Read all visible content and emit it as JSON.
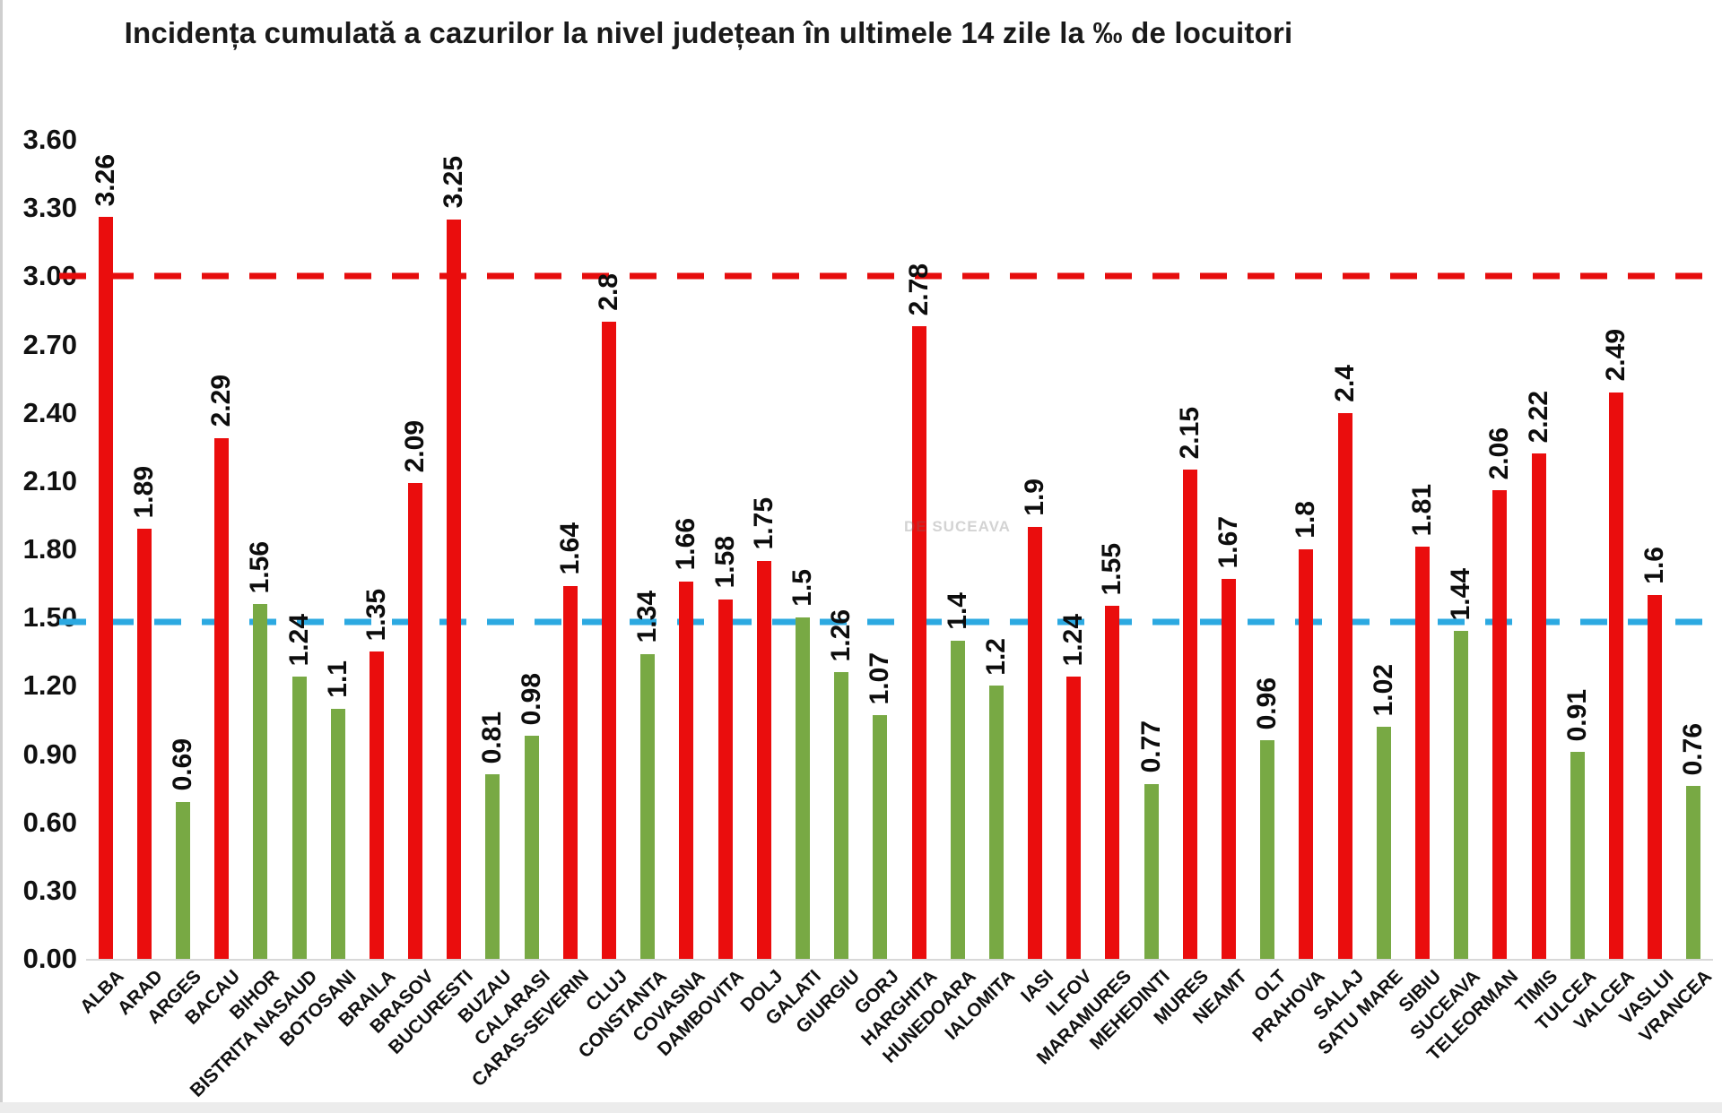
{
  "title": "Incidența cumulată a cazurilor la nivel județean în ultimele 14 zile la ‰ de locuitori",
  "watermark": "DE SUCEAVA",
  "colors": {
    "bar_red": "#ea0d0d",
    "bar_green": "#78a944",
    "red_dashed_line": "#e60d0d",
    "blue_dashed_line": "#2ca9e1",
    "axis_text": "#111111",
    "baseline": "#d8d8d8"
  },
  "y_axis": {
    "tick_labels": [
      "3.60",
      "3.30",
      "3.00",
      "2.70",
      "2.40",
      "2.10",
      "1.80",
      "1.50",
      "1.20",
      "0.90",
      "0.60",
      "0.30",
      "0.00"
    ],
    "max": 3.6,
    "min": 0
  },
  "chart_data": {
    "type": "bar",
    "title": "Incidența cumulată a cazurilor la nivel județean în ultimele 14 zile la ‰ de locuitori",
    "xlabel": "",
    "ylabel": "",
    "ylim": [
      0,
      3.6
    ],
    "ytick_step": 0.3,
    "grid": false,
    "legend": false,
    "categories": [
      "ALBA",
      "ARAD",
      "ARGES",
      "BACAU",
      "BIHOR",
      "BISTRITA NASAUD",
      "BOTOSANI",
      "BRAILA",
      "BRASOV",
      "BUCURESTI",
      "BUZAU",
      "CALARASI",
      "CARAS-SEVERIN",
      "CLUJ",
      "CONSTANTA",
      "COVASNA",
      "DAMBOVITA",
      "DOLJ",
      "GALATI",
      "GIURGIU",
      "GORJ",
      "HARGHITA",
      "HUNEDOARA",
      "IALOMITA",
      "IASI",
      "ILFOV",
      "MARAMURES",
      "MEHEDINTI",
      "MURES",
      "NEAMT",
      "OLT",
      "PRAHOVA",
      "SALAJ",
      "SATU MARE",
      "SIBIU",
      "SUCEAVA",
      "TELEORMAN",
      "TIMIS",
      "TULCEA",
      "VALCEA",
      "VASLUI",
      "VRANCEA"
    ],
    "values": [
      3.26,
      1.89,
      0.69,
      2.29,
      1.56,
      1.24,
      1.1,
      1.35,
      2.09,
      3.25,
      0.81,
      0.98,
      1.64,
      2.8,
      1.34,
      1.66,
      1.58,
      1.75,
      1.5,
      1.26,
      1.07,
      2.78,
      1.4,
      1.2,
      1.9,
      1.24,
      1.55,
      0.77,
      2.15,
      1.67,
      0.96,
      1.8,
      2.4,
      1.02,
      1.81,
      1.44,
      2.06,
      2.22,
      0.91,
      2.49,
      1.6,
      0.76
    ],
    "value_labels": [
      "3.26",
      "1.89",
      "0.69",
      "2.29",
      "1.56",
      "1.24",
      "1.1",
      "1.35",
      "2.09",
      "3.25",
      "0.81",
      "0.98",
      "1.64",
      "2.8",
      "1.34",
      "1.66",
      "1.58",
      "1.75",
      "1.5",
      "1.26",
      "1.07",
      "2.78",
      "1.4",
      "1.2",
      "1.9",
      "1.24",
      "1.55",
      "0.77",
      "2.15",
      "1.67",
      "0.96",
      "1.8",
      "2.4",
      "1.02",
      "1.81",
      "1.44",
      "2.06",
      "2.22",
      "0.91",
      "2.49",
      "1.6",
      "0.76"
    ],
    "bar_colors": [
      "red",
      "red",
      "green",
      "red",
      "green",
      "green",
      "green",
      "red",
      "red",
      "red",
      "green",
      "green",
      "red",
      "red",
      "green",
      "red",
      "red",
      "red",
      "green",
      "green",
      "green",
      "red",
      "green",
      "green",
      "red",
      "red",
      "red",
      "green",
      "red",
      "red",
      "green",
      "red",
      "red",
      "green",
      "red",
      "green",
      "red",
      "red",
      "green",
      "red",
      "red",
      "green"
    ],
    "thresholds": [
      {
        "name": "red-threshold",
        "value": 3.0,
        "color": "#e60d0d",
        "style": "dashed"
      },
      {
        "name": "blue-threshold",
        "value": 1.48,
        "color": "#2ca9e1",
        "style": "dashed"
      }
    ]
  }
}
